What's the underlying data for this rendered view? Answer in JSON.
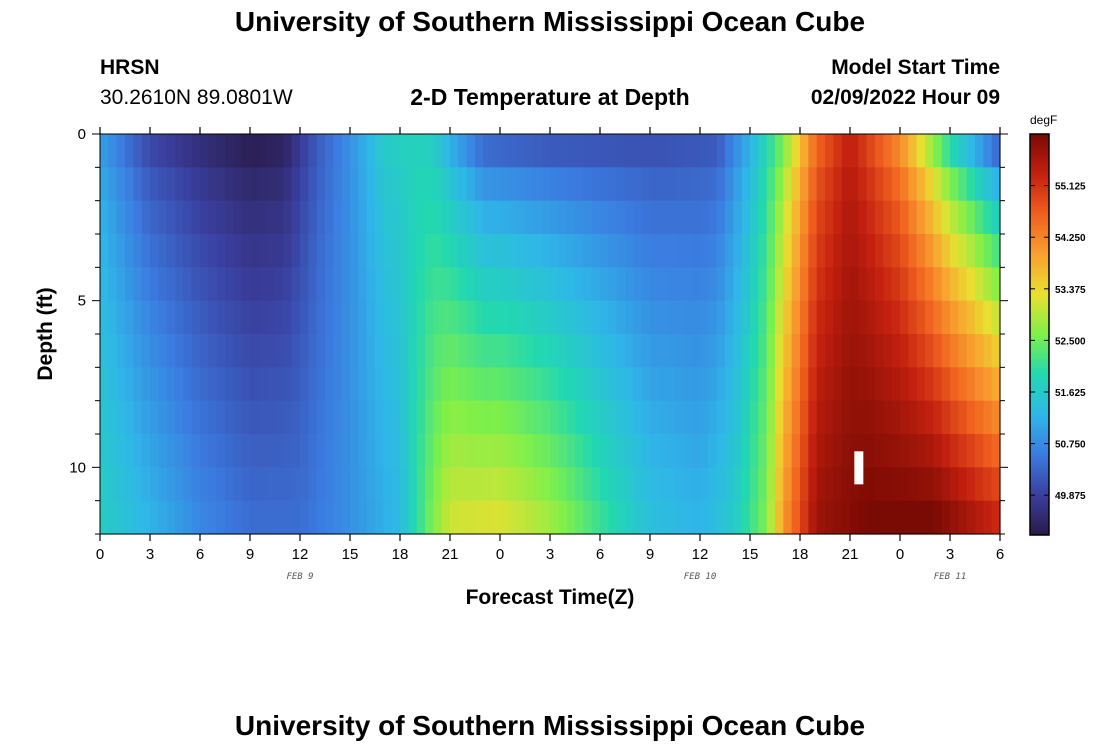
{
  "header": {
    "title": "University of Southern Mississippi Ocean Cube",
    "station": "HRSN",
    "coords": "30.2610N  89.0801W",
    "plot_title": "2-D Temperature at Depth",
    "model_label": "Model Start Time",
    "model_time": "02/09/2022 Hour 09"
  },
  "footer": {
    "title": "University of Southern Mississippi Ocean Cube"
  },
  "chart_data": {
    "type": "heatmap",
    "title": "2-D Temperature at Depth",
    "xlabel": "Forecast Time(Z)",
    "ylabel": "Depth (ft)",
    "x_tick_labels": [
      "0",
      "3",
      "6",
      "9",
      "12",
      "15",
      "18",
      "21",
      "0",
      "3",
      "6",
      "9",
      "12",
      "15",
      "18",
      "21",
      "0",
      "3",
      "6"
    ],
    "date_labels": [
      {
        "label": "FEB 9",
        "tick_index": 4
      },
      {
        "label": "FEB 10",
        "tick_index": 12
      },
      {
        "label": "FEB 11",
        "tick_index": 17
      }
    ],
    "x_hours": [
      0,
      54
    ],
    "y_ticks": [
      "0",
      "5",
      "10"
    ],
    "y_range_ft": [
      0,
      12
    ],
    "colorbar": {
      "unit": "degF",
      "tick_labels": [
        "55.125",
        "54.250",
        "53.375",
        "52.500",
        "51.625",
        "50.750",
        "49.875"
      ],
      "range": [
        49.2,
        56.0
      ],
      "colors": [
        "#2a1a4a",
        "#3a3f9e",
        "#3b7be0",
        "#2fb7e8",
        "#22d8b0",
        "#7ef04a",
        "#e8e030",
        "#f9a030",
        "#f0601f",
        "#c4200f",
        "#7a0a04"
      ]
    },
    "grid_columns_per_hour": 2,
    "depth_rows": 12,
    "surface_profile_degF": [
      [
        0,
        51.0
      ],
      [
        3,
        50.0
      ],
      [
        6,
        49.6
      ],
      [
        9,
        49.3
      ],
      [
        11,
        49.4
      ],
      [
        13,
        50.2
      ],
      [
        15,
        50.8
      ],
      [
        17,
        51.6
      ],
      [
        19,
        51.8
      ],
      [
        20,
        51.7
      ],
      [
        21,
        51.2
      ],
      [
        23,
        50.4
      ],
      [
        27,
        50.2
      ],
      [
        33,
        50.1
      ],
      [
        37,
        50.2
      ],
      [
        39,
        51.2
      ],
      [
        41,
        52.6
      ],
      [
        43,
        54.6
      ],
      [
        45,
        55.4
      ],
      [
        46,
        55.0
      ],
      [
        48,
        54.2
      ],
      [
        51,
        52.0
      ],
      [
        54,
        50.3
      ]
    ],
    "bottom_profile_degF": [
      [
        0,
        51.7
      ],
      [
        3,
        51.2
      ],
      [
        6,
        50.7
      ],
      [
        9,
        50.4
      ],
      [
        12,
        50.4
      ],
      [
        15,
        50.8
      ],
      [
        18,
        51.3
      ],
      [
        19,
        52.0
      ],
      [
        20,
        52.6
      ],
      [
        21,
        53.1
      ],
      [
        24,
        53.2
      ],
      [
        27,
        52.8
      ],
      [
        30,
        52.1
      ],
      [
        33,
        51.4
      ],
      [
        36,
        51.2
      ],
      [
        38,
        51.6
      ],
      [
        40,
        52.6
      ],
      [
        41,
        54.0
      ],
      [
        43,
        55.7
      ],
      [
        46,
        56.0
      ],
      [
        50,
        56.0
      ],
      [
        54,
        55.2
      ]
    ],
    "missing_cell": {
      "hour": 45.5,
      "depth_ft": 10.0
    }
  }
}
